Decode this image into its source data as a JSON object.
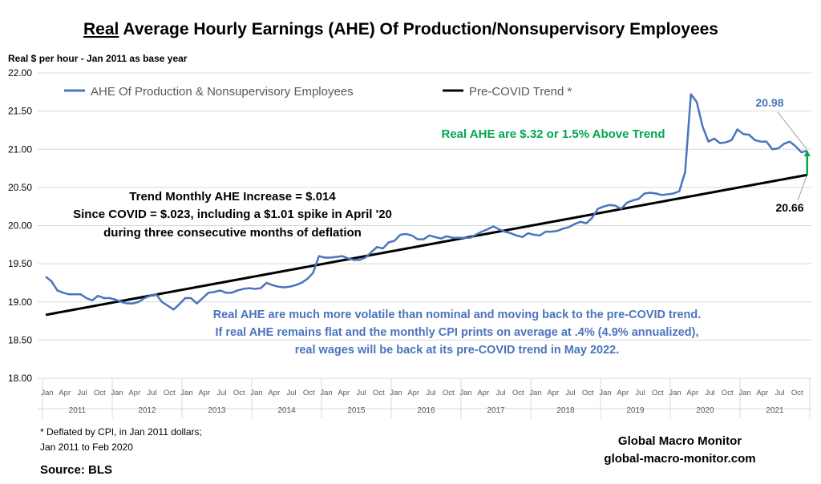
{
  "chart_data": {
    "type": "line",
    "title_underlined": "Real",
    "title_rest": " Average Hourly Earnings (AHE) Of Production/Nonsupervisory Employees",
    "ylabel": "Real $ per hour - Jan 2011 as base year",
    "ylim": [
      18.0,
      22.0
    ],
    "yticks": [
      "18.00",
      "18.50",
      "19.00",
      "19.50",
      "20.00",
      "20.50",
      "21.00",
      "21.50",
      "22.00"
    ],
    "grid": true,
    "legend_position": "top",
    "x_start": "Jan 2011",
    "month_ticks": [
      "Jan",
      "Apr",
      "Jul",
      "Oct"
    ],
    "years": [
      "2011",
      "2012",
      "2013",
      "2014",
      "2015",
      "2016",
      "2017",
      "2018",
      "2019",
      "2020",
      "2021"
    ],
    "series": [
      {
        "name": "AHE Of Production & Nonsupervisory Employees",
        "color": "#4a74bd",
        "values": [
          19.33,
          19.27,
          19.15,
          19.12,
          19.1,
          19.1,
          19.1,
          19.05,
          19.02,
          19.08,
          19.05,
          19.05,
          19.03,
          19.0,
          18.98,
          18.98,
          19.0,
          19.05,
          19.08,
          19.1,
          19.0,
          18.95,
          18.9,
          18.97,
          19.05,
          19.05,
          18.98,
          19.05,
          19.12,
          19.13,
          19.15,
          19.12,
          19.12,
          19.15,
          19.17,
          19.18,
          19.17,
          19.18,
          19.25,
          19.22,
          19.2,
          19.19,
          19.2,
          19.22,
          19.25,
          19.3,
          19.38,
          19.6,
          19.58,
          19.58,
          19.59,
          19.6,
          19.57,
          19.55,
          19.55,
          19.58,
          19.65,
          19.72,
          19.7,
          19.78,
          19.8,
          19.88,
          19.89,
          19.87,
          19.82,
          19.82,
          19.87,
          19.85,
          19.83,
          19.86,
          19.84,
          19.84,
          19.84,
          19.84,
          19.88,
          19.92,
          19.95,
          19.99,
          19.95,
          19.92,
          19.9,
          19.87,
          19.85,
          19.9,
          19.88,
          19.87,
          19.92,
          19.92,
          19.93,
          19.96,
          19.98,
          20.02,
          20.05,
          20.03,
          20.1,
          20.22,
          20.25,
          20.27,
          20.26,
          20.22,
          20.3,
          20.33,
          20.35,
          20.42,
          20.43,
          20.42,
          20.4,
          20.41,
          20.42,
          20.45,
          20.7,
          21.72,
          21.62,
          21.3,
          21.1,
          21.14,
          21.08,
          21.09,
          21.12,
          21.26,
          21.2,
          21.19,
          21.12,
          21.1,
          21.1,
          21.0,
          21.01,
          21.07,
          21.1,
          21.04,
          20.96,
          20.98
        ]
      },
      {
        "name": "Pre-COVID Trend *",
        "color": "#000000",
        "start": 18.83,
        "monthly_increase": 0.014,
        "end": 20.66
      }
    ],
    "annotations": {
      "end_value_label": "20.98",
      "trend_end_label": "20.66",
      "above_trend": "Real AHE are $.32 or 1.5% Above Trend",
      "trend_text": [
        "Trend Monthly AHE Increase = $.014",
        "Since COVID = $.023, including a $1.01 spike in April '20",
        "during three consecutive months of deflation"
      ],
      "volatility_text": [
        "Real AHE are much more volatile than nominal and moving back to the pre-COVID trend.",
        "If real AHE remains flat and the monthly CPI prints on average at .4% (4.9% annualized),",
        "real wages will be back at its pre-COVID trend in May 2022."
      ]
    },
    "footnote": [
      "* Deflated by CPI,  in Jan 2011 dollars;",
      "Jan 2011 to Feb 2020"
    ],
    "source": "Source:  BLS",
    "brand": [
      "Global Macro Monitor",
      "global-macro-monitor.com"
    ],
    "colors": {
      "blue": "#4a74bd",
      "green": "#00a651",
      "grid": "#d9d9d9"
    }
  }
}
